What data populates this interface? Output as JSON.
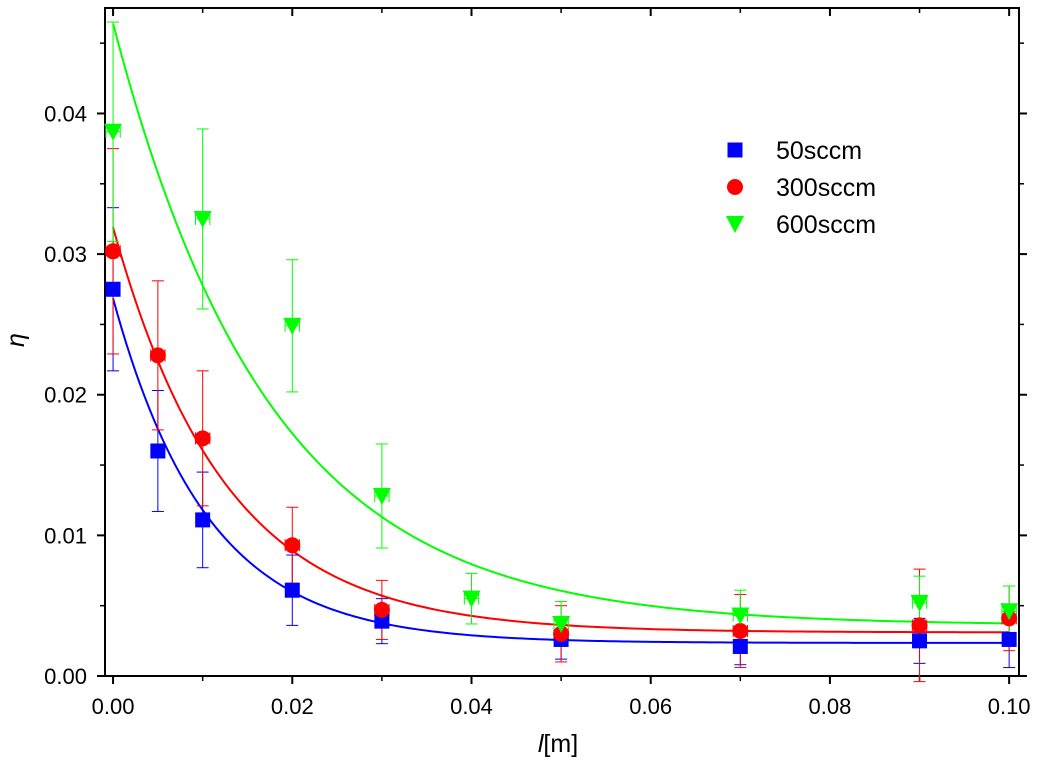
{
  "chart_data": {
    "type": "scatter",
    "title": "",
    "xlabel": {
      "symbol": "l",
      "unit": "[m]"
    },
    "ylabel": "η",
    "xlim": [
      -0.0009,
      0.1011
    ],
    "ylim": [
      0.0,
      0.0475
    ],
    "xticks": [
      0.0,
      0.02,
      0.04,
      0.06,
      0.08,
      0.1
    ],
    "xtick_labels": [
      "0.00",
      "0.02",
      "0.04",
      "0.06",
      "0.08",
      "0.10"
    ],
    "xminor_step": 0.01,
    "yticks": [
      0.0,
      0.01,
      0.02,
      0.03,
      0.04
    ],
    "ytick_labels": [
      "0.00",
      "0.01",
      "0.02",
      "0.03",
      "0.04"
    ],
    "yminor_step": 0.005,
    "legend_position": "top-right",
    "series": [
      {
        "name": "50sccm",
        "color": "#0000ff",
        "marker": "square",
        "x": [
          0.0,
          0.005,
          0.01,
          0.02,
          0.03,
          0.05,
          0.07,
          0.09,
          0.1
        ],
        "y": [
          0.0275,
          0.016,
          0.0111,
          0.0061,
          0.0039,
          0.0026,
          0.0021,
          0.0025,
          0.0026
        ],
        "yerr": [
          0.0058,
          0.0043,
          0.0034,
          0.0025,
          0.0016,
          0.0014,
          0.0013,
          0.0016,
          0.002
        ],
        "xerr": 0.0007,
        "fit": {
          "y0": 0.00235,
          "A": 0.0245,
          "t": 0.0105
        }
      },
      {
        "name": "300sccm",
        "color": "#ff0000",
        "marker": "circle",
        "x": [
          0.0,
          0.005,
          0.01,
          0.02,
          0.03,
          0.05,
          0.07,
          0.09,
          0.1
        ],
        "y": [
          0.0302,
          0.0228,
          0.0169,
          0.0093,
          0.0047,
          0.003,
          0.0032,
          0.0036,
          0.0041
        ],
        "yerr": [
          0.0073,
          0.0053,
          0.0048,
          0.0027,
          0.0021,
          0.002,
          0.0026,
          0.004,
          0.0023
        ],
        "xerr": 0.0008,
        "fit": {
          "y0": 0.0031,
          "A": 0.0288,
          "t": 0.0125
        }
      },
      {
        "name": "600sccm",
        "color": "#00ff00",
        "marker": "triangle-down",
        "x": [
          0.0,
          0.01,
          0.02,
          0.03,
          0.04,
          0.05,
          0.07,
          0.09,
          0.1
        ],
        "y": [
          0.0387,
          0.0325,
          0.0249,
          0.0128,
          0.0055,
          0.0037,
          0.0043,
          0.0052,
          0.0046
        ],
        "yerr": [
          0.0078,
          0.0064,
          0.0047,
          0.0037,
          0.0018,
          0.0016,
          0.0018,
          0.0019,
          0.0018
        ],
        "xerr": 0.0008,
        "fit": {
          "y0": 0.0036,
          "A": 0.0428,
          "t": 0.0175
        }
      }
    ]
  }
}
